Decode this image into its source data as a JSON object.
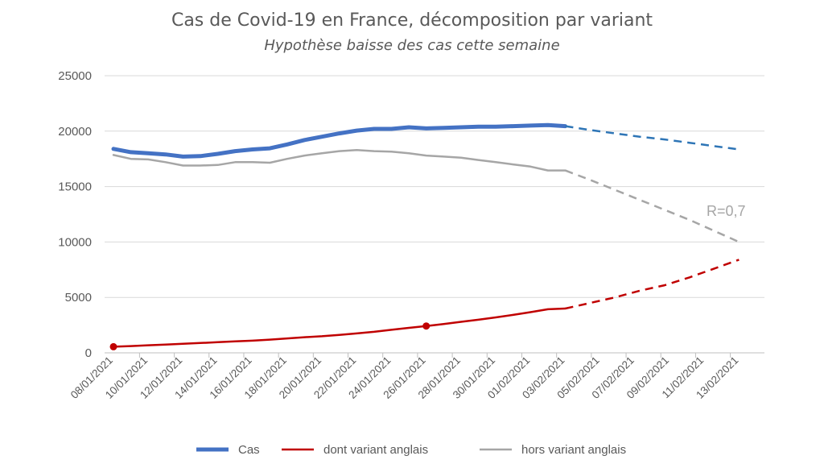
{
  "chart_data": {
    "type": "line",
    "title": "Cas de Covid-19 en France, décomposition par variant",
    "subtitle": "Hypothèse baisse des cas cette semaine",
    "xlabel": "",
    "ylabel": "",
    "ylim": [
      0,
      25000
    ],
    "yticks": [
      "0",
      "5000",
      "10000",
      "15000",
      "20000",
      "25000"
    ],
    "xticks": [
      "08/01/2021",
      "10/01/2021",
      "12/01/2021",
      "14/01/2021",
      "16/01/2021",
      "18/01/2021",
      "20/01/2021",
      "22/01/2021",
      "24/01/2021",
      "26/01/2021",
      "28/01/2021",
      "30/01/2021",
      "01/02/2021",
      "03/02/2021",
      "05/02/2021",
      "07/02/2021",
      "09/02/2021",
      "11/02/2021",
      "13/02/2021"
    ],
    "grid": "horizontal",
    "legend_position": "bottom",
    "annotation": "R=0,7",
    "series": [
      {
        "name": "Cas",
        "color": "#4472c4",
        "dashed_color": "#2e75b6",
        "values": [
          18400,
          18100,
          18000,
          17900,
          17700,
          17750,
          17950,
          18200,
          18350,
          18450,
          18800,
          19200,
          19500,
          19800,
          20050,
          20200,
          20200,
          20350,
          20250,
          20300,
          20350,
          20400,
          20400,
          20450,
          20500,
          20550,
          20450
        ],
        "projection": [
          20450,
          20100,
          19800,
          19500,
          19250,
          18950,
          18650,
          18350
        ]
      },
      {
        "name": "dont variant anglais",
        "color": "#c00000",
        "values": [
          550,
          610,
          680,
          750,
          820,
          890,
          960,
          1030,
          1100,
          1190,
          1300,
          1410,
          1500,
          1620,
          1750,
          1900,
          2080,
          2250,
          2420,
          2600,
          2800,
          2990,
          3200,
          3420,
          3670,
          3930,
          4000
        ],
        "projection": [
          4000,
          4500,
          5000,
          5600,
          6100,
          6800,
          7600,
          8400
        ],
        "markers": [
          0,
          18
        ]
      },
      {
        "name": "hors variant anglais",
        "color": "#a6a6a6",
        "values": [
          17850,
          17500,
          17450,
          17200,
          16900,
          16900,
          16950,
          17200,
          17200,
          17150,
          17500,
          17800,
          18000,
          18200,
          18300,
          18200,
          18150,
          18000,
          17800,
          17700,
          17600,
          17400,
          17200,
          17000,
          16800,
          16450,
          16450
        ],
        "projection": [
          16450,
          15600,
          14700,
          13800,
          12900,
          12000,
          11000,
          10000
        ]
      }
    ]
  }
}
